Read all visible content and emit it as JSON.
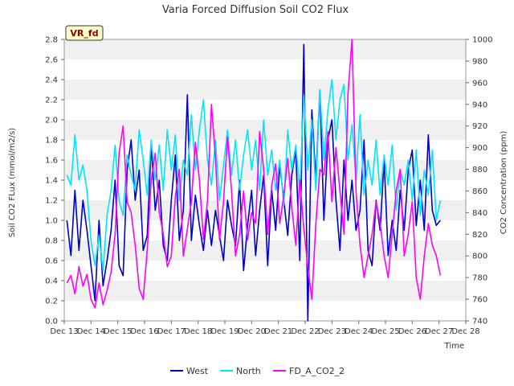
{
  "chart_data": {
    "type": "line",
    "title": "Varia Forced Diffusion Soil CO2 Flux",
    "xlabel": "Time",
    "ylabel": "Soil CO2 FLux (mmol/m2/s)",
    "y2label": "CO2 Concentration (ppm)",
    "badge": "VR_fd",
    "xlim": [
      13,
      28
    ],
    "ylim": [
      0,
      2.8
    ],
    "y2lim": [
      740,
      1000
    ],
    "x_ticks": [
      "Dec 13",
      "Dec 14",
      "Dec 15",
      "Dec 16",
      "Dec 17",
      "Dec 18",
      "Dec 19",
      "Dec 20",
      "Dec 21",
      "Dec 22",
      "Dec 23",
      "Dec 24",
      "Dec 25",
      "Dec 26",
      "Dec 27",
      "Dec 28"
    ],
    "y_ticks": [
      "0.0",
      "0.2",
      "0.4",
      "0.6",
      "0.8",
      "1.0",
      "1.2",
      "1.4",
      "1.6",
      "1.8",
      "2.0",
      "2.2",
      "2.4",
      "2.6",
      "2.8"
    ],
    "y2_ticks": [
      "740",
      "760",
      "780",
      "800",
      "820",
      "840",
      "860",
      "880",
      "900",
      "920",
      "940",
      "960",
      "980",
      "1000"
    ],
    "grid": "horizontal bands",
    "legend_position": "bottom",
    "series": [
      {
        "name": "West",
        "axis": "left",
        "color": "#0000cc",
        "x": [
          13.1,
          13.25,
          13.4,
          13.55,
          13.7,
          13.85,
          14.0,
          14.15,
          14.3,
          14.45,
          14.6,
          14.75,
          14.9,
          15.05,
          15.2,
          15.35,
          15.5,
          15.65,
          15.8,
          15.95,
          16.1,
          16.25,
          16.4,
          16.55,
          16.7,
          16.85,
          17.0,
          17.15,
          17.3,
          17.45,
          17.6,
          17.75,
          17.9,
          18.05,
          18.2,
          18.35,
          18.5,
          18.65,
          18.8,
          18.95,
          19.1,
          19.25,
          19.4,
          19.55,
          19.7,
          19.85,
          20.0,
          20.15,
          20.3,
          20.45,
          20.6,
          20.75,
          20.9,
          21.05,
          21.2,
          21.35,
          21.5,
          21.65,
          21.8,
          21.95,
          22.1,
          22.25,
          22.4,
          22.55,
          22.7,
          22.85,
          23.0,
          23.15,
          23.3,
          23.45,
          23.6,
          23.75,
          23.9,
          24.05,
          24.2,
          24.35,
          24.5,
          24.65,
          24.8,
          24.95,
          25.1,
          25.25,
          25.4,
          25.55,
          25.7,
          25.85,
          26.0,
          26.15,
          26.3,
          26.45,
          26.6,
          26.75,
          26.9,
          27.05
        ],
        "y": [
          1.0,
          0.65,
          1.3,
          0.7,
          1.2,
          0.9,
          0.55,
          0.2,
          1.0,
          0.35,
          0.6,
          0.9,
          1.4,
          0.55,
          0.45,
          1.5,
          1.8,
          1.2,
          1.5,
          0.7,
          0.85,
          1.75,
          1.1,
          1.4,
          0.75,
          0.6,
          1.2,
          1.65,
          0.8,
          1.1,
          2.25,
          0.8,
          1.25,
          0.95,
          0.7,
          1.1,
          0.75,
          1.1,
          0.85,
          0.6,
          1.2,
          0.95,
          0.75,
          1.4,
          0.5,
          0.95,
          1.3,
          0.65,
          1.1,
          1.45,
          0.55,
          1.3,
          0.9,
          1.55,
          1.2,
          0.85,
          1.45,
          1.7,
          0.6,
          2.75,
          0.0,
          2.1,
          1.4,
          2.3,
          1.0,
          1.8,
          2.0,
          1.2,
          0.7,
          1.6,
          1.0,
          1.4,
          0.9,
          1.1,
          1.8,
          0.7,
          0.55,
          1.2,
          0.9,
          1.6,
          0.65,
          1.0,
          0.7,
          1.3,
          0.9,
          1.5,
          1.7,
          0.95,
          1.4,
          0.9,
          1.85,
          1.1,
          0.95,
          1.0
        ]
      },
      {
        "name": "North",
        "axis": "left",
        "color": "#00e5ff",
        "x": [
          13.1,
          13.25,
          13.4,
          13.55,
          13.7,
          13.85,
          14.0,
          14.15,
          14.3,
          14.45,
          14.6,
          14.75,
          14.9,
          15.05,
          15.2,
          15.35,
          15.5,
          15.65,
          15.8,
          15.95,
          16.1,
          16.25,
          16.4,
          16.55,
          16.7,
          16.85,
          17.0,
          17.15,
          17.3,
          17.45,
          17.6,
          17.75,
          17.9,
          18.05,
          18.2,
          18.35,
          18.5,
          18.65,
          18.8,
          18.95,
          19.1,
          19.25,
          19.4,
          19.55,
          19.7,
          19.85,
          20.0,
          20.15,
          20.3,
          20.45,
          20.6,
          20.75,
          20.9,
          21.05,
          21.2,
          21.35,
          21.5,
          21.65,
          21.8,
          21.95,
          22.1,
          22.25,
          22.4,
          22.55,
          22.7,
          22.85,
          23.0,
          23.15,
          23.3,
          23.45,
          23.6,
          23.75,
          23.9,
          24.05,
          24.2,
          24.35,
          24.5,
          24.65,
          24.8,
          24.95,
          25.1,
          25.25,
          25.4,
          25.55,
          25.7,
          25.85,
          26.0,
          26.15,
          26.3,
          26.45,
          26.6,
          26.75,
          26.9,
          27.05
        ],
        "y": [
          1.45,
          1.35,
          1.85,
          1.4,
          1.55,
          1.3,
          0.8,
          0.55,
          0.85,
          0.5,
          1.05,
          1.3,
          1.75,
          1.2,
          1.05,
          1.65,
          1.45,
          1.3,
          1.9,
          1.6,
          1.25,
          1.8,
          1.4,
          1.75,
          1.3,
          1.9,
          1.5,
          1.85,
          1.2,
          1.6,
          1.45,
          2.05,
          1.5,
          1.9,
          2.2,
          1.6,
          1.35,
          1.8,
          1.2,
          1.55,
          1.9,
          1.45,
          1.8,
          1.3,
          1.65,
          1.9,
          1.5,
          1.8,
          1.3,
          2.0,
          1.45,
          1.7,
          1.3,
          1.6,
          1.15,
          1.9,
          1.5,
          1.75,
          1.3,
          2.25,
          1.5,
          2.0,
          1.3,
          2.3,
          1.6,
          2.1,
          2.4,
          1.8,
          2.2,
          2.35,
          1.6,
          1.95,
          1.4,
          2.05,
          1.25,
          1.6,
          1.35,
          1.8,
          1.25,
          1.65,
          1.35,
          1.75,
          1.1,
          1.5,
          1.35,
          1.6,
          1.2,
          1.7,
          1.05,
          1.5,
          1.25,
          1.7,
          1.0,
          1.2
        ]
      },
      {
        "name": "FD_A_CO2_2",
        "axis": "right",
        "color": "#ff00ff",
        "x": [
          13.1,
          13.25,
          13.4,
          13.55,
          13.7,
          13.85,
          14.0,
          14.15,
          14.3,
          14.45,
          14.6,
          14.75,
          14.9,
          15.05,
          15.2,
          15.35,
          15.5,
          15.65,
          15.8,
          15.95,
          16.1,
          16.25,
          16.4,
          16.55,
          16.7,
          16.85,
          17.0,
          17.15,
          17.3,
          17.45,
          17.6,
          17.75,
          17.9,
          18.05,
          18.2,
          18.35,
          18.5,
          18.65,
          18.8,
          18.95,
          19.1,
          19.25,
          19.4,
          19.55,
          19.7,
          19.85,
          20.0,
          20.15,
          20.3,
          20.45,
          20.6,
          20.75,
          20.9,
          21.05,
          21.2,
          21.35,
          21.5,
          21.65,
          21.8,
          21.95,
          22.1,
          22.25,
          22.4,
          22.55,
          22.7,
          22.85,
          23.0,
          23.15,
          23.3,
          23.45,
          23.6,
          23.75,
          23.9,
          24.05,
          24.2,
          24.35,
          24.5,
          24.65,
          24.8,
          24.95,
          25.1,
          25.25,
          25.4,
          25.55,
          25.7,
          25.85,
          26.0,
          26.15,
          26.3,
          26.45,
          26.6,
          26.75,
          26.9,
          27.05
        ],
        "y": [
          775,
          782,
          765,
          790,
          772,
          783,
          760,
          752,
          775,
          755,
          768,
          785,
          820,
          895,
          920,
          850,
          840,
          810,
          770,
          760,
          805,
          870,
          895,
          840,
          820,
          790,
          800,
          855,
          880,
          800,
          825,
          850,
          905,
          870,
          815,
          850,
          940,
          890,
          815,
          850,
          910,
          860,
          800,
          820,
          860,
          815,
          840,
          830,
          915,
          880,
          820,
          865,
          885,
          830,
          855,
          890,
          845,
          810,
          870,
          825,
          790,
          760,
          830,
          880,
          875,
          915,
          850,
          900,
          860,
          820,
          950,
          1000,
          860,
          810,
          780,
          800,
          820,
          850,
          830,
          800,
          780,
          820,
          860,
          880,
          800,
          820,
          850,
          780,
          760,
          800,
          830,
          810,
          800,
          782
        ]
      }
    ]
  }
}
